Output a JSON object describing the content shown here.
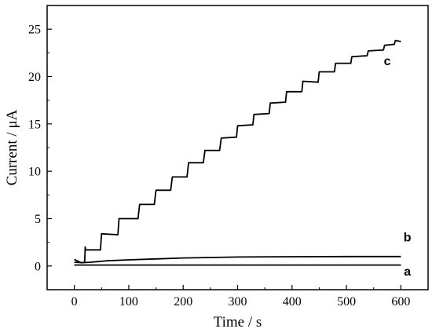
{
  "chart_data": {
    "type": "line",
    "title": "",
    "xlabel": "Time / s",
    "ylabel": "Current / μA",
    "xlim": [
      -50,
      650
    ],
    "ylim": [
      -2.5,
      27.5
    ],
    "xticks": [
      0,
      100,
      200,
      300,
      400,
      500,
      600
    ],
    "yticks": [
      0,
      5,
      10,
      15,
      20,
      25
    ],
    "grid": false,
    "legend": "none",
    "line_color": "#000000",
    "series": [
      {
        "name": "a",
        "label_at": {
          "x": 612,
          "y": -1.0
        },
        "points": [
          [
            0,
            0.1
          ],
          [
            600,
            0.1
          ]
        ]
      },
      {
        "name": "b",
        "label_at": {
          "x": 612,
          "y": 2.6
        },
        "points": [
          [
            0,
            0.4
          ],
          [
            15,
            0.35
          ],
          [
            30,
            0.4
          ],
          [
            60,
            0.55
          ],
          [
            100,
            0.65
          ],
          [
            150,
            0.75
          ],
          [
            200,
            0.85
          ],
          [
            250,
            0.9
          ],
          [
            300,
            0.95
          ],
          [
            400,
            0.98
          ],
          [
            500,
            1.0
          ],
          [
            600,
            1.0
          ]
        ]
      },
      {
        "name": "c",
        "label_at": {
          "x": 575,
          "y": 21.2
        },
        "points": [
          [
            0,
            0.7
          ],
          [
            5,
            0.55
          ],
          [
            12,
            0.35
          ],
          [
            19,
            0.4
          ],
          [
            20,
            2.0
          ],
          [
            21,
            1.7
          ],
          [
            48,
            1.7
          ],
          [
            50,
            3.4
          ],
          [
            80,
            3.3
          ],
          [
            82,
            5.0
          ],
          [
            117,
            5.0
          ],
          [
            120,
            6.5
          ],
          [
            147,
            6.5
          ],
          [
            150,
            8.0
          ],
          [
            177,
            8.0
          ],
          [
            180,
            9.4
          ],
          [
            207,
            9.4
          ],
          [
            210,
            10.9
          ],
          [
            237,
            10.9
          ],
          [
            240,
            12.2
          ],
          [
            267,
            12.2
          ],
          [
            270,
            13.5
          ],
          [
            298,
            13.6
          ],
          [
            300,
            14.8
          ],
          [
            328,
            14.9
          ],
          [
            330,
            16.0
          ],
          [
            358,
            16.1
          ],
          [
            360,
            17.2
          ],
          [
            388,
            17.3
          ],
          [
            390,
            18.4
          ],
          [
            418,
            18.4
          ],
          [
            420,
            19.5
          ],
          [
            448,
            19.4
          ],
          [
            450,
            20.5
          ],
          [
            478,
            20.5
          ],
          [
            480,
            21.4
          ],
          [
            508,
            21.4
          ],
          [
            510,
            22.1
          ],
          [
            538,
            22.2
          ],
          [
            540,
            22.7
          ],
          [
            568,
            22.8
          ],
          [
            570,
            23.3
          ],
          [
            588,
            23.4
          ],
          [
            590,
            23.8
          ],
          [
            600,
            23.7
          ]
        ]
      }
    ]
  }
}
